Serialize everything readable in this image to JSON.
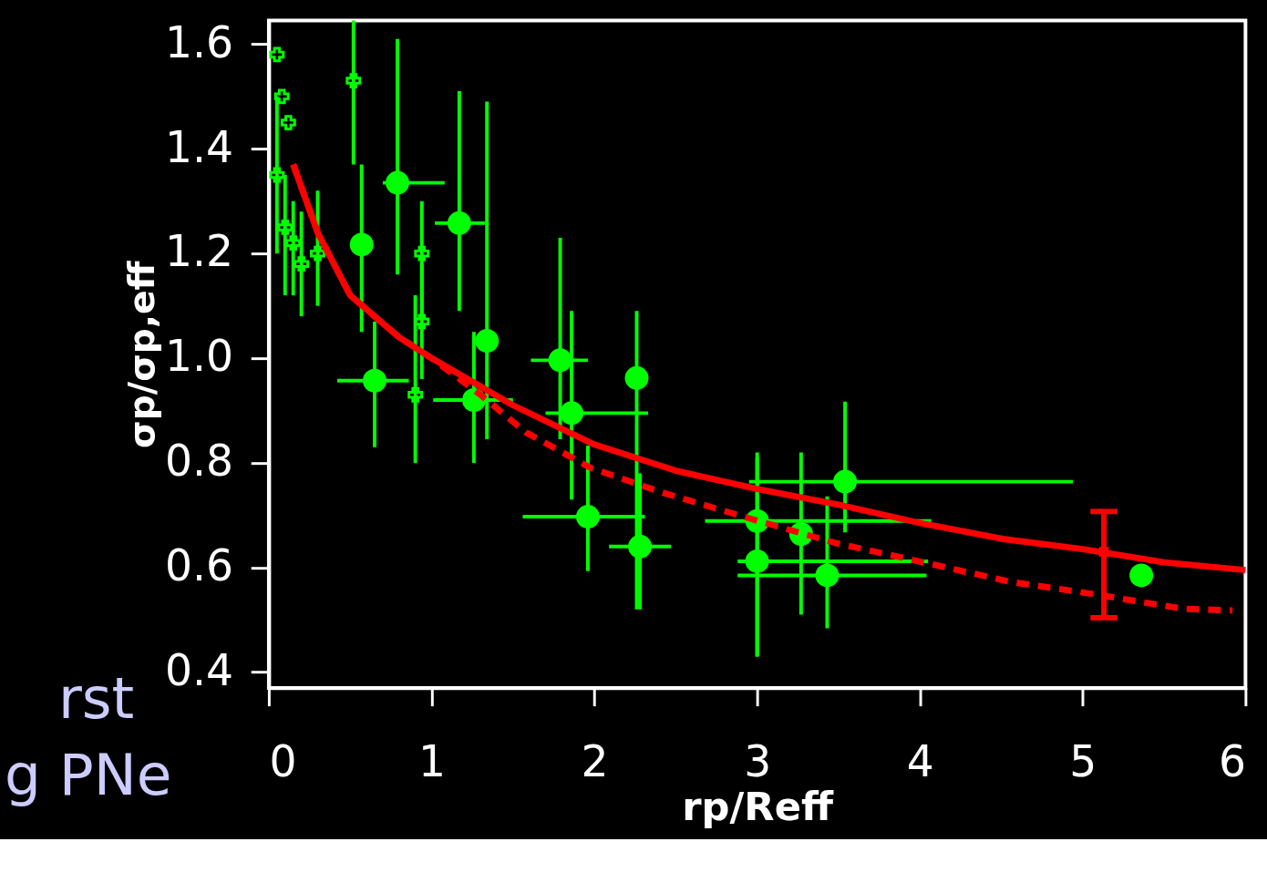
{
  "chart_data": {
    "type": "scatter",
    "xlabel": "rp/Reff",
    "ylabel": "σp/σp,eff",
    "xlim": [
      0,
      6
    ],
    "ylim": [
      0.37,
      1.645
    ],
    "xticks": [
      0,
      1,
      2,
      3,
      4,
      5,
      6
    ],
    "yticks": [
      0.4,
      0.6,
      0.8,
      {
        "value": 1,
        "label": "1.0"
      },
      1.2,
      1.4,
      1.6
    ],
    "grid": false,
    "annotations": [
      "rst",
      "g PNe"
    ],
    "series": [
      {
        "marker": "circle",
        "color": "#00ff00",
        "x": [
          0.79,
          1.17,
          1.79,
          1.86,
          2.26,
          1.96,
          2.28,
          0.65,
          1.34,
          1.26,
          3.0,
          3.0,
          3.27,
          3.43,
          3.54,
          0.57,
          5.36
        ],
        "values": [
          1.335,
          1.258,
          0.996,
          0.895,
          0.962,
          0.697,
          0.64,
          0.957,
          1.033,
          0.92,
          0.689,
          0.612,
          0.664,
          0.585,
          0.764,
          1.217,
          0.585
        ],
        "errors": [
          [
            1.16,
            1.61
          ],
          [
            1.09,
            1.51
          ],
          [
            0.845,
            1.23
          ],
          [
            0.73,
            1.09
          ],
          [
            0.52,
            1.09
          ],
          [
            0.593,
            0.833
          ],
          [
            0.52,
            0.78
          ],
          [
            0.83,
            1.07
          ],
          [
            0.845,
            1.49
          ],
          [
            0.8,
            1.05
          ],
          [
            0.43,
            0.82
          ],
          [
            0.43,
            0.81
          ],
          [
            0.51,
            0.82
          ],
          [
            0.484,
            0.736
          ],
          [
            0.667,
            0.917
          ],
          [
            1.05,
            1.37
          ],
          null
        ],
        "xerrors": [
          [
            0.7,
            1.08
          ],
          [
            1.02,
            1.33
          ],
          [
            1.61,
            1.96
          ],
          [
            1.7,
            2.33
          ],
          null,
          [
            1.56,
            2.31
          ],
          [
            2.09,
            2.47
          ],
          [
            0.42,
            0.86
          ],
          null,
          [
            1.01,
            1.5
          ],
          [
            2.68,
            4.07
          ],
          [
            2.88,
            4.05
          ],
          null,
          [
            2.88,
            4.04
          ],
          [
            2.95,
            4.94
          ],
          null,
          null
        ]
      },
      {
        "marker": "cross",
        "color": "#00ff00",
        "x": [
          0.52,
          0.94,
          0.9,
          0.94,
          0.05,
          0.08,
          0.12,
          0.05,
          0.1,
          0.15,
          0.2,
          0.3
        ],
        "values": [
          1.53,
          1.2,
          0.93,
          1.07,
          1.58,
          1.5,
          1.45,
          1.35,
          1.25,
          1.22,
          1.18,
          1.2
        ],
        "errors": [
          [
            1.37,
            1.645
          ],
          [
            1.08,
            1.3
          ],
          [
            0.8,
            1.12
          ],
          [
            0.96,
            1.18
          ],
          null,
          null,
          null,
          [
            1.2,
            1.5
          ],
          [
            1.12,
            1.35
          ],
          [
            1.12,
            1.3
          ],
          [
            1.08,
            1.28
          ],
          [
            1.1,
            1.32
          ]
        ]
      },
      {
        "type": "line",
        "line_style": "solid",
        "color": "#ff0000",
        "x": [
          0.15,
          0.3,
          0.5,
          0.8,
          1.0,
          1.5,
          2.0,
          2.5,
          3.0,
          3.5,
          4.0,
          4.5,
          5.0,
          5.5,
          6.0
        ],
        "values": [
          1.37,
          1.24,
          1.12,
          1.04,
          1.0,
          0.91,
          0.835,
          0.785,
          0.75,
          0.72,
          0.685,
          0.655,
          0.635,
          0.61,
          0.595
        ]
      },
      {
        "type": "line",
        "line_style": "dashed",
        "color": "#ff0000",
        "x": [
          0.15,
          0.3,
          0.5,
          0.8,
          1.0,
          1.3,
          1.58,
          1.98,
          2.41,
          2.95,
          3.48,
          4.02,
          4.55,
          5.09,
          5.62,
          5.92
        ],
        "values": [
          1.37,
          1.24,
          1.12,
          1.04,
          1.0,
          0.93,
          0.858,
          0.79,
          0.744,
          0.694,
          0.647,
          0.61,
          0.573,
          0.548,
          0.521,
          0.518
        ]
      },
      {
        "marker": "square",
        "color": "#ff0000",
        "x": [
          5.13
        ],
        "values": [
          0.63
        ],
        "errors": [
          [
            0.504,
            0.707
          ]
        ]
      }
    ]
  }
}
